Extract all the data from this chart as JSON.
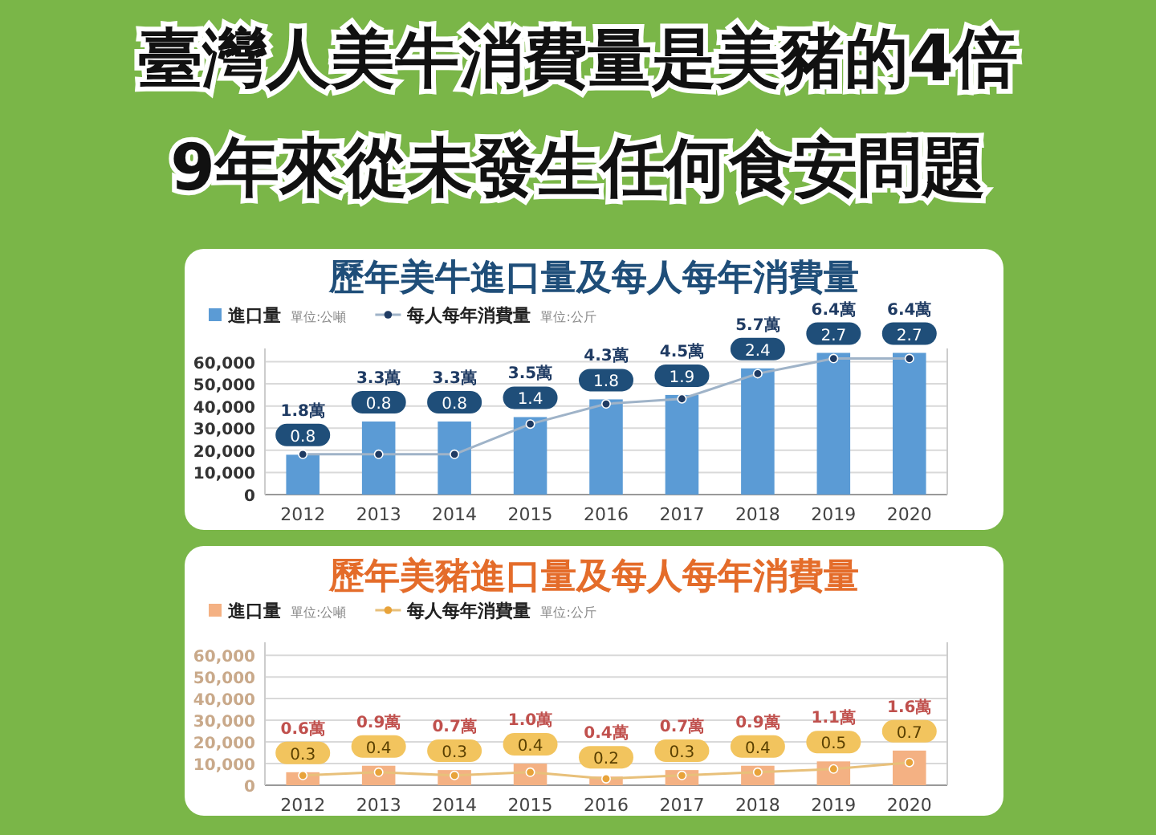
{
  "chart_data": [
    {
      "type": "bar",
      "title": "歷年美牛進口量及每人每年消費量",
      "annotations": [
        "臺灣人美牛消費量是美豬的4倍",
        "9年來從未發生任何食安問題",
        {
          "text": "1.8萬",
          "x": "2012",
          "y": 18000
        },
        {
          "text": "3.3萬",
          "x": "2013",
          "y": 33000
        },
        {
          "text": "3.3萬",
          "x": "2014",
          "y": 33000
        },
        {
          "text": "3.5萬",
          "x": "2015",
          "y": 35000
        },
        {
          "text": "4.3萬",
          "x": "2016",
          "y": 43000
        },
        {
          "text": "4.5萬",
          "x": "2017",
          "y": 45000
        },
        {
          "text": "5.7萬",
          "x": "2018",
          "y": 57000
        },
        {
          "text": "6.4萬",
          "x": "2019",
          "y": 64000
        },
        {
          "text": "6.4萬",
          "x": "2020",
          "y": 64000
        }
      ],
      "categories": [
        "2012",
        "2013",
        "2014",
        "2015",
        "2016",
        "2017",
        "2018",
        "2019",
        "2020"
      ],
      "ylabel": "單位:公噸",
      "y2label": "單位:公斤",
      "ylim": [
        0,
        66000
      ],
      "yticks": [
        0,
        {
          "value": 10000,
          "label": "10,000"
        },
        {
          "value": 20000,
          "label": "20,000"
        },
        {
          "value": 30000,
          "label": "30,000"
        },
        {
          "value": 40000,
          "label": "40,000"
        },
        {
          "value": 50000,
          "label": "50,000"
        },
        {
          "value": 60000,
          "label": "60,000"
        }
      ],
      "y2lim": [
        0,
        2.9
      ],
      "grid": "y",
      "legend": "top left",
      "series": [
        {
          "name": "進口量",
          "color": "#5b9bd5",
          "values": [
            18000,
            33000,
            33000,
            35000,
            43000,
            45000,
            57000,
            64000,
            64000
          ]
        },
        {
          "name": "每人每年消費量",
          "type": "line",
          "axis": "y2",
          "marker": "circle",
          "color": "#9fb3c8",
          "values": [
            0.8,
            0.8,
            0.8,
            1.4,
            1.8,
            1.9,
            2.4,
            2.7,
            2.7
          ],
          "value_labels": [
            "0.8",
            "0.8",
            "0.8",
            "1.4",
            "1.8",
            "1.9",
            "2.4",
            "2.7",
            "2.7"
          ]
        }
      ]
    },
    {
      "type": "bar",
      "title": "歷年美豬進口量及每人每年消費量",
      "annotations": [
        {
          "text": "0.6萬",
          "x": "2012",
          "y": 6000
        },
        {
          "text": "0.9萬",
          "x": "2013",
          "y": 9000
        },
        {
          "text": "0.7萬",
          "x": "2014",
          "y": 7000
        },
        {
          "text": "1.0萬",
          "x": "2015",
          "y": 10000
        },
        {
          "text": "0.4萬",
          "x": "2016",
          "y": 4000
        },
        {
          "text": "0.7萬",
          "x": "2017",
          "y": 7000
        },
        {
          "text": "0.9萬",
          "x": "2018",
          "y": 9000
        },
        {
          "text": "1.1萬",
          "x": "2019",
          "y": 11000
        },
        {
          "text": "1.6萬",
          "x": "2020",
          "y": 16000
        }
      ],
      "categories": [
        "2012",
        "2013",
        "2014",
        "2015",
        "2016",
        "2017",
        "2018",
        "2019",
        "2020"
      ],
      "ylabel": "單位:公噸",
      "y2label": "單位:公斤",
      "ylim": [
        0,
        66000
      ],
      "yticks": [
        0,
        {
          "value": 10000,
          "label": "10,000"
        },
        {
          "value": 20000,
          "label": "20,000"
        },
        {
          "value": 30000,
          "label": "30,000"
        },
        {
          "value": 40000,
          "label": "40,000"
        },
        {
          "value": 50000,
          "label": "50,000"
        },
        {
          "value": 60000,
          "label": "60,000"
        }
      ],
      "y2lim": [
        0,
        4.4
      ],
      "grid": "y",
      "legend": "top left",
      "series": [
        {
          "name": "進口量",
          "color": "#f4b183",
          "values": [
            6000,
            9000,
            7000,
            10000,
            4000,
            7000,
            9000,
            11000,
            16000
          ]
        },
        {
          "name": "每人每年消費量",
          "type": "line",
          "axis": "y2",
          "marker": "circle",
          "color": "#e8c07a",
          "values": [
            0.3,
            0.4,
            0.3,
            0.4,
            0.2,
            0.3,
            0.4,
            0.5,
            0.7
          ],
          "value_labels": [
            "0.3",
            "0.4",
            "0.3",
            "0.4",
            "0.2",
            "0.3",
            "0.4",
            "0.5",
            "0.7"
          ]
        }
      ]
    }
  ]
}
